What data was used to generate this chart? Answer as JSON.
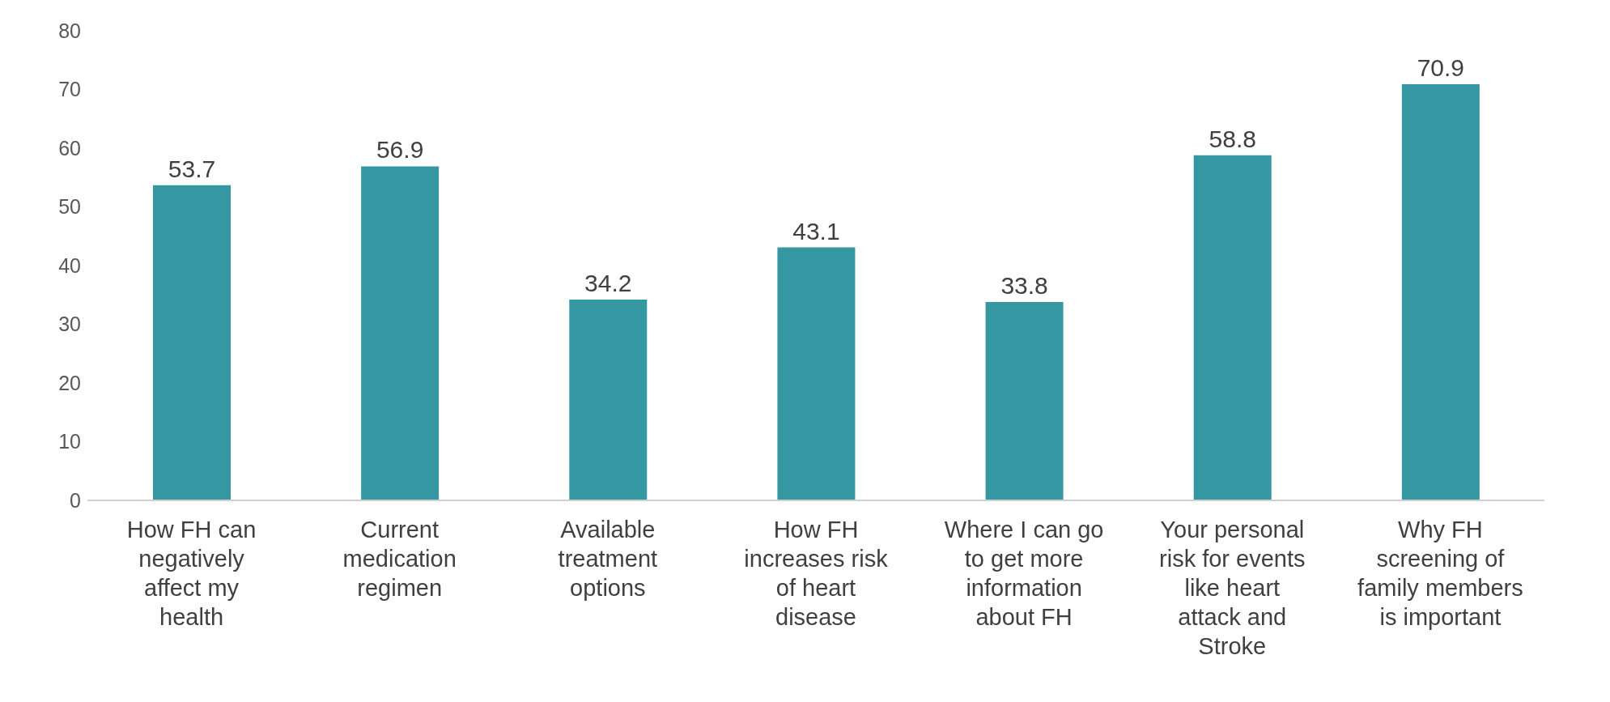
{
  "chart_data": {
    "type": "bar",
    "categories": [
      "How FH can negatively affect my health",
      "Current medication regimen",
      "Available treatment options",
      "How FH increases risk of heart disease",
      "Where I can go to get more information about FH",
      "Your personal risk for events like heart attack and Stroke",
      "Why FH screening of family members is important"
    ],
    "values": [
      53.7,
      56.9,
      34.2,
      43.1,
      33.8,
      58.8,
      70.9
    ],
    "color": "#3497a2",
    "ylim": [
      0,
      80
    ],
    "yticks": [
      0,
      10,
      20,
      30,
      40,
      50,
      60,
      70,
      80
    ],
    "grid": false,
    "data_labels": true
  }
}
